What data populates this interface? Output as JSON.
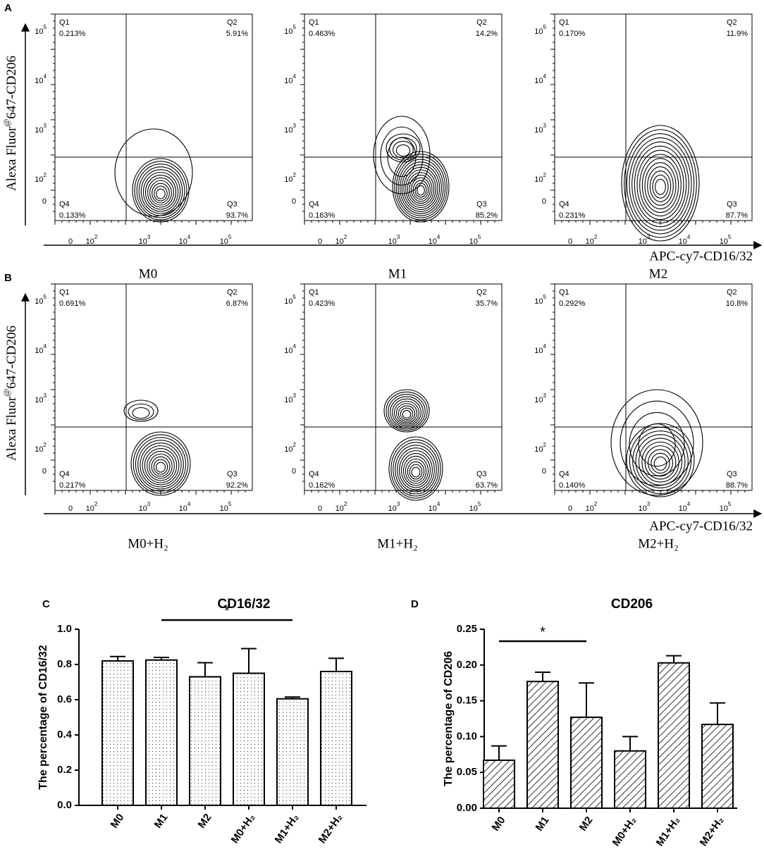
{
  "flow": {
    "y_axis_label": [
      "Alexa Fluor",
      "@",
      "647-CD206"
    ],
    "x_axis_label": "APC-cy7-CD16/32",
    "quadrant_names": [
      "Q1",
      "Q2",
      "Q3",
      "Q4"
    ],
    "axis_ticks": [
      {
        "base": "0"
      },
      {
        "base": "10",
        "sup": "2"
      },
      {
        "base": "10",
        "sup": "3"
      },
      {
        "base": "10",
        "sup": "4"
      },
      {
        "base": "10",
        "sup": "5"
      }
    ],
    "panels": [
      {
        "label": "A",
        "plots": [
          {
            "name": "M0",
            "quadrants": [
              "0.213%",
              "5.91%",
              "93.7%",
              "0.133%"
            ]
          },
          {
            "name": "M1",
            "quadrants": [
              "0.463%",
              "14.2%",
              "85.2%",
              "0.163%"
            ]
          },
          {
            "name": "M2",
            "quadrants": [
              "0.170%",
              "11.9%",
              "87.7%",
              "0.231%"
            ]
          }
        ]
      },
      {
        "label": "B",
        "plots": [
          {
            "name": "M0+H₂",
            "quadrants": [
              "0.691%",
              "6.87%",
              "92.2%",
              "0.217%"
            ]
          },
          {
            "name": "M1+H₂",
            "quadrants": [
              "0.423%",
              "35.7%",
              "63.7%",
              "0.162%"
            ]
          },
          {
            "name": "M2+H₂",
            "quadrants": [
              "0.292%",
              "10.8%",
              "88.7%",
              "0.140%"
            ]
          }
        ]
      }
    ]
  },
  "chart_data": [
    {
      "type": "bar",
      "panel_label": "C",
      "title": "CD16/32",
      "y_label": "The percentage of CD16/32",
      "categories": [
        "M0",
        "M1",
        "M2",
        "M0+H₂",
        "M1+H₂",
        "M2+H₂"
      ],
      "values": [
        0.82,
        0.825,
        0.73,
        0.75,
        0.605,
        0.76
      ],
      "errors": [
        0.025,
        0.015,
        0.08,
        0.14,
        0.01,
        0.075
      ],
      "pattern": "dots",
      "color": "#000000",
      "ylim": [
        0,
        1
      ],
      "yticks": [
        {
          "value": 0,
          "label": "0.0"
        },
        0.2,
        0.4,
        0.6,
        0.8,
        {
          "value": 1,
          "label": "1.0"
        }
      ],
      "annotations": [
        "*"
      ]
    },
    {
      "type": "bar",
      "panel_label": "D",
      "title": "CD206",
      "y_label": "The percentage of CD206",
      "categories": [
        "M0",
        "M1",
        "M2",
        "M0+H₂",
        "M1+H₂",
        "M2+H₂"
      ],
      "values": [
        0.067,
        0.177,
        0.127,
        0.08,
        0.203,
        0.117
      ],
      "errors": [
        0.02,
        0.013,
        0.048,
        0.02,
        0.01,
        0.03
      ],
      "pattern": "hatch",
      "color": "#000000",
      "ylim": [
        0,
        0.25
      ],
      "yticks": [
        {
          "value": 0,
          "label": "0.00"
        },
        {
          "value": 0.05,
          "label": "0.05"
        },
        {
          "value": 0.1,
          "label": "0.10"
        },
        {
          "value": 0.15,
          "label": "0.15"
        },
        {
          "value": 0.2,
          "label": "0.20"
        },
        {
          "value": 0.25,
          "label": "0.25"
        }
      ],
      "annotations": [
        "*"
      ]
    }
  ]
}
